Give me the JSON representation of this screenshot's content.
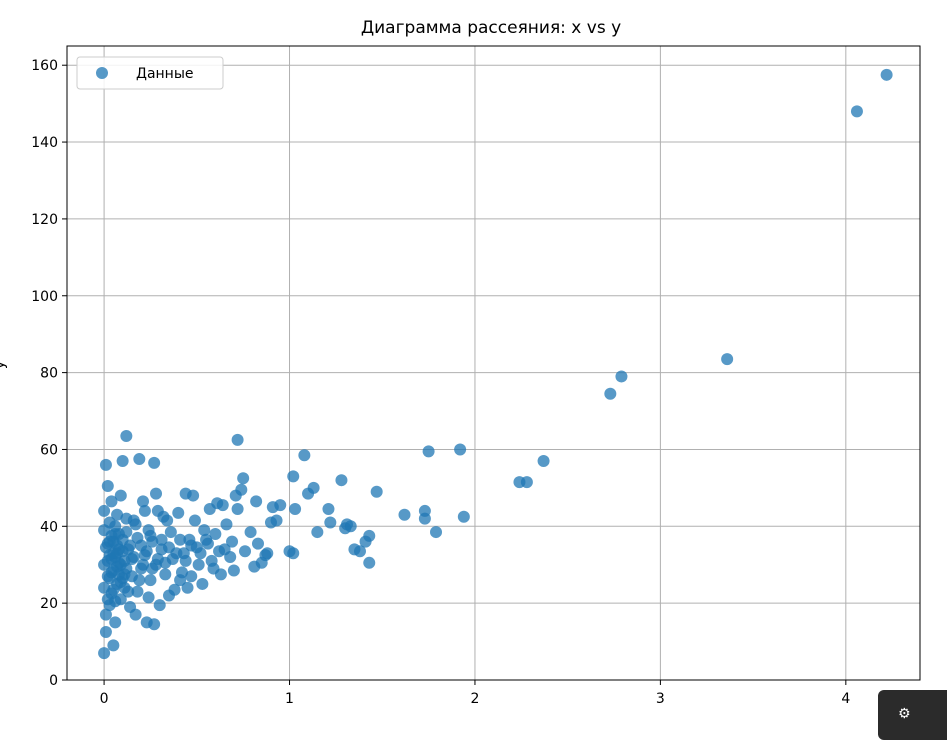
{
  "chart_data": {
    "type": "scatter",
    "title": "Диаграмма рассеяния: x vs y",
    "xlabel": "",
    "ylabel": "y",
    "xlim": [
      -0.2,
      4.4
    ],
    "ylim": [
      0,
      165
    ],
    "xticks": [
      "0",
      "1",
      "2",
      "3",
      "4"
    ],
    "yticks": [
      "0",
      "20",
      "40",
      "60",
      "80",
      "100",
      "120",
      "140",
      "160"
    ],
    "grid": true,
    "legend_position": "top-left",
    "color": "#1f77b4",
    "series": [
      {
        "name": "Данные",
        "points": [
          [
            4.22,
            157.5
          ],
          [
            4.06,
            148.0
          ],
          [
            3.36,
            83.5
          ],
          [
            2.79,
            79.0
          ],
          [
            2.73,
            74.5
          ],
          [
            2.37,
            57.0
          ],
          [
            2.28,
            51.5
          ],
          [
            2.24,
            51.5
          ],
          [
            1.92,
            60.0
          ],
          [
            1.75,
            59.5
          ],
          [
            1.94,
            42.5
          ],
          [
            1.79,
            38.5
          ],
          [
            1.73,
            42.0
          ],
          [
            1.73,
            44.0
          ],
          [
            1.62,
            43.0
          ],
          [
            1.47,
            49.0
          ],
          [
            1.43,
            37.5
          ],
          [
            1.41,
            36.0
          ],
          [
            1.43,
            30.5
          ],
          [
            1.38,
            33.5
          ],
          [
            1.35,
            34.0
          ],
          [
            1.33,
            40.0
          ],
          [
            1.31,
            40.5
          ],
          [
            1.3,
            39.5
          ],
          [
            1.28,
            52.0
          ],
          [
            1.22,
            41.0
          ],
          [
            1.21,
            44.5
          ],
          [
            1.15,
            38.5
          ],
          [
            1.13,
            50.0
          ],
          [
            1.1,
            48.5
          ],
          [
            1.08,
            58.5
          ],
          [
            1.03,
            44.5
          ],
          [
            1.02,
            53.0
          ],
          [
            1.02,
            33.0
          ],
          [
            1.0,
            33.5
          ],
          [
            0.95,
            45.5
          ],
          [
            0.93,
            41.5
          ],
          [
            0.91,
            45.0
          ],
          [
            0.9,
            41.0
          ],
          [
            0.88,
            33.0
          ],
          [
            0.87,
            32.5
          ],
          [
            0.85,
            30.5
          ],
          [
            0.83,
            35.5
          ],
          [
            0.82,
            46.5
          ],
          [
            0.81,
            29.5
          ],
          [
            0.79,
            38.5
          ],
          [
            0.76,
            33.5
          ],
          [
            0.75,
            52.5
          ],
          [
            0.74,
            49.5
          ],
          [
            0.72,
            62.5
          ],
          [
            0.72,
            44.5
          ],
          [
            0.71,
            48.0
          ],
          [
            0.7,
            28.5
          ],
          [
            0.69,
            36.0
          ],
          [
            0.68,
            32.0
          ],
          [
            0.66,
            40.5
          ],
          [
            0.64,
            45.5
          ],
          [
            0.63,
            27.5
          ],
          [
            0.62,
            33.5
          ],
          [
            0.61,
            46.0
          ],
          [
            0.6,
            38.0
          ],
          [
            0.58,
            31.0
          ],
          [
            0.57,
            44.5
          ],
          [
            0.56,
            35.5
          ],
          [
            0.54,
            39.0
          ],
          [
            0.53,
            25.0
          ],
          [
            0.51,
            30.0
          ],
          [
            0.5,
            34.5
          ],
          [
            0.49,
            41.5
          ],
          [
            0.48,
            48.0
          ],
          [
            0.47,
            27.0
          ],
          [
            0.46,
            36.5
          ],
          [
            0.45,
            24.0
          ],
          [
            0.44,
            48.5
          ],
          [
            0.43,
            33.0
          ],
          [
            0.42,
            28.0
          ],
          [
            0.41,
            36.5
          ],
          [
            0.4,
            43.5
          ],
          [
            0.38,
            23.5
          ],
          [
            0.37,
            31.5
          ],
          [
            0.36,
            38.5
          ],
          [
            0.35,
            22.0
          ],
          [
            0.34,
            41.5
          ],
          [
            0.33,
            27.5
          ],
          [
            0.32,
            42.5
          ],
          [
            0.31,
            34.0
          ],
          [
            0.3,
            19.5
          ],
          [
            0.29,
            44.0
          ],
          [
            0.28,
            30.0
          ],
          [
            0.28,
            48.5
          ],
          [
            0.27,
            56.5
          ],
          [
            0.27,
            14.5
          ],
          [
            0.26,
            36.0
          ],
          [
            0.25,
            26.0
          ],
          [
            0.24,
            39.0
          ],
          [
            0.23,
            15.0
          ],
          [
            0.22,
            32.5
          ],
          [
            0.22,
            44.0
          ],
          [
            0.21,
            46.5
          ],
          [
            0.2,
            29.0
          ],
          [
            0.19,
            57.5
          ],
          [
            0.18,
            23.0
          ],
          [
            0.18,
            37.0
          ],
          [
            0.17,
            17.0
          ],
          [
            0.16,
            41.5
          ],
          [
            0.15,
            31.5
          ],
          [
            0.14,
            19.0
          ],
          [
            0.13,
            34.0
          ],
          [
            0.12,
            63.5
          ],
          [
            0.12,
            42.0
          ],
          [
            0.11,
            27.5
          ],
          [
            0.1,
            57.0
          ],
          [
            0.1,
            36.5
          ],
          [
            0.09,
            21.0
          ],
          [
            0.09,
            48.0
          ],
          [
            0.08,
            30.5
          ],
          [
            0.07,
            43.0
          ],
          [
            0.07,
            25.0
          ],
          [
            0.06,
            15.0
          ],
          [
            0.06,
            38.0
          ],
          [
            0.05,
            33.0
          ],
          [
            0.05,
            9.0
          ],
          [
            0.04,
            46.5
          ],
          [
            0.04,
            28.0
          ],
          [
            0.03,
            41.0
          ],
          [
            0.03,
            19.5
          ],
          [
            0.02,
            50.5
          ],
          [
            0.02,
            35.5
          ],
          [
            0.01,
            56.0
          ],
          [
            0.01,
            12.5
          ],
          [
            0.0,
            44.0
          ],
          [
            0.0,
            30.0
          ],
          [
            0.0,
            7.0
          ],
          [
            0.0,
            24.0
          ],
          [
            0.0,
            39.0
          ],
          [
            0.01,
            17.0
          ],
          [
            0.02,
            27.0
          ],
          [
            0.03,
            32.5
          ],
          [
            0.04,
            22.5
          ],
          [
            0.05,
            36.0
          ],
          [
            0.06,
            20.5
          ],
          [
            0.07,
            29.5
          ],
          [
            0.08,
            34.0
          ],
          [
            0.09,
            25.5
          ],
          [
            0.11,
            31.0
          ],
          [
            0.12,
            38.5
          ],
          [
            0.13,
            23.0
          ],
          [
            0.14,
            35.0
          ],
          [
            0.15,
            27.0
          ],
          [
            0.16,
            32.0
          ],
          [
            0.17,
            40.5
          ],
          [
            0.19,
            26.0
          ],
          [
            0.2,
            35.0
          ],
          [
            0.21,
            30.0
          ],
          [
            0.23,
            33.5
          ],
          [
            0.24,
            21.5
          ],
          [
            0.25,
            37.5
          ],
          [
            0.26,
            29.0
          ],
          [
            0.29,
            31.5
          ],
          [
            0.31,
            36.5
          ],
          [
            0.33,
            30.5
          ],
          [
            0.35,
            34.5
          ],
          [
            0.39,
            33.0
          ],
          [
            0.41,
            26.0
          ],
          [
            0.44,
            31.0
          ],
          [
            0.47,
            35.0
          ],
          [
            0.52,
            33.0
          ],
          [
            0.55,
            36.5
          ],
          [
            0.59,
            29.0
          ],
          [
            0.65,
            34.0
          ],
          [
            0.02,
            31.0
          ],
          [
            0.03,
            26.5
          ],
          [
            0.04,
            37.5
          ],
          [
            0.05,
            23.5
          ],
          [
            0.06,
            32.0
          ],
          [
            0.07,
            35.0
          ],
          [
            0.08,
            27.5
          ],
          [
            0.1,
            33.5
          ],
          [
            0.11,
            24.0
          ],
          [
            0.12,
            29.0
          ],
          [
            0.01,
            34.5
          ],
          [
            0.02,
            21.0
          ],
          [
            0.03,
            36.0
          ],
          [
            0.04,
            31.5
          ],
          [
            0.05,
            28.5
          ],
          [
            0.06,
            40.0
          ],
          [
            0.07,
            33.0
          ],
          [
            0.08,
            38.0
          ],
          [
            0.09,
            30.0
          ],
          [
            0.1,
            26.5
          ]
        ]
      }
    ]
  },
  "corner_widget": {
    "icon": "gear-icon"
  }
}
